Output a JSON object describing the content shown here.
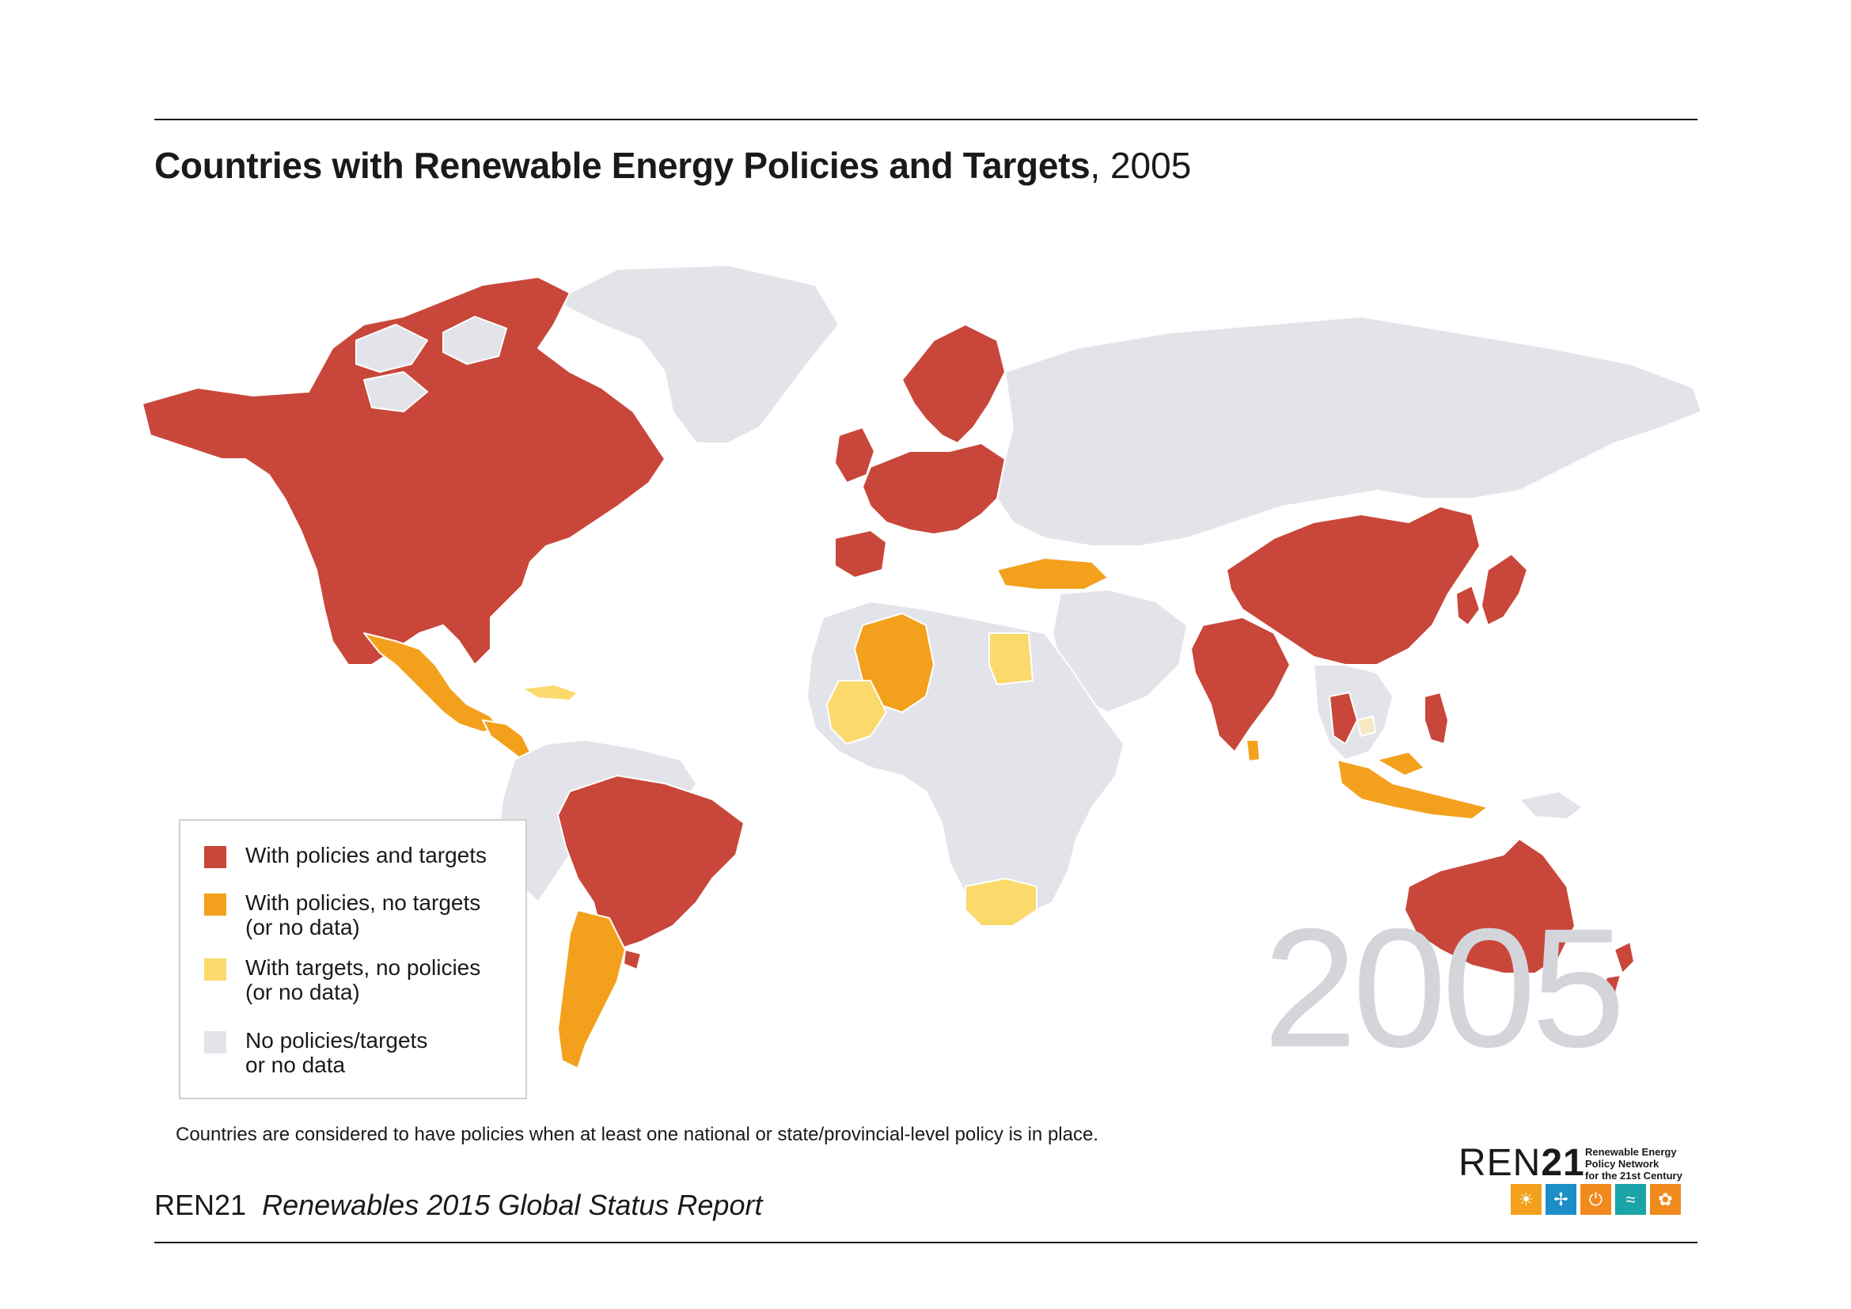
{
  "title": {
    "main": "Countries with Renewable Energy Policies and Targets",
    "separator": ",",
    "year": "2005"
  },
  "watermark_year": "2005",
  "colors": {
    "policies_and_targets": "#c8473a",
    "policies_no_targets": "#f3a11d",
    "targets_no_policies": "#fbd96b",
    "no_data": "#e3e4ea",
    "targets_no_policies_light": "#f7e8c3"
  },
  "legend": {
    "items": [
      {
        "key": "policies_and_targets",
        "label_line1": "With policies and targets",
        "label_line2": ""
      },
      {
        "key": "policies_no_targets",
        "label_line1": "With policies, no targets",
        "label_line2": "(or no data)"
      },
      {
        "key": "targets_no_policies",
        "label_line1": "With targets, no policies",
        "label_line2": "(or no data)"
      },
      {
        "key": "no_data",
        "label_line1": "No policies/targets",
        "label_line2": "or no data"
      }
    ]
  },
  "footnote": "Countries are considered to have policies when at least one national or state/provincial-level policy is in place.",
  "source": {
    "org": "REN21",
    "report": "Renewables 2015 Global Status Report"
  },
  "logo": {
    "word_bold": "REN",
    "word_num": "21",
    "tagline_1": "Renewable Energy",
    "tagline_2": "Policy Network",
    "tagline_3": "for the 21st Century",
    "icons": [
      {
        "name": "sun-icon",
        "color": "#f3a11d",
        "glyph": "☀"
      },
      {
        "name": "wind-icon",
        "color": "#1c8fc9",
        "glyph": "✢"
      },
      {
        "name": "power-icon",
        "color": "#f08a1d",
        "glyph": "⏻"
      },
      {
        "name": "water-icon",
        "color": "#1aa3a8",
        "glyph": "≈"
      },
      {
        "name": "leaf-icon",
        "color": "#f08a1d",
        "glyph": "✿"
      }
    ]
  },
  "map_regions": [
    {
      "name": "north-america",
      "category": "policies_and_targets"
    },
    {
      "name": "mexico",
      "category": "policies_no_targets"
    },
    {
      "name": "central-america",
      "category": "policies_no_targets"
    },
    {
      "name": "caribbean",
      "category": "targets_no_policies"
    },
    {
      "name": "greenland",
      "category": "no_data"
    },
    {
      "name": "south-america-north",
      "category": "no_data"
    },
    {
      "name": "brazil",
      "category": "policies_and_targets"
    },
    {
      "name": "argentina",
      "category": "policies_no_targets"
    },
    {
      "name": "uruguay",
      "category": "policies_and_targets"
    },
    {
      "name": "europe",
      "category": "policies_and_targets"
    },
    {
      "name": "scandinavia",
      "category": "policies_and_targets"
    },
    {
      "name": "uk-ireland",
      "category": "policies_and_targets"
    },
    {
      "name": "iberia",
      "category": "policies_and_targets"
    },
    {
      "name": "turkey",
      "category": "policies_no_targets"
    },
    {
      "name": "russia-central-asia",
      "category": "no_data"
    },
    {
      "name": "algeria",
      "category": "policies_no_targets"
    },
    {
      "name": "mali",
      "category": "targets_no_policies"
    },
    {
      "name": "egypt",
      "category": "targets_no_policies"
    },
    {
      "name": "africa",
      "category": "no_data"
    },
    {
      "name": "south-africa",
      "category": "targets_no_policies"
    },
    {
      "name": "middle-east",
      "category": "no_data"
    },
    {
      "name": "india",
      "category": "policies_and_targets"
    },
    {
      "name": "sri-lanka",
      "category": "policies_no_targets"
    },
    {
      "name": "china",
      "category": "policies_and_targets"
    },
    {
      "name": "japan",
      "category": "policies_and_targets"
    },
    {
      "name": "korea",
      "category": "policies_and_targets"
    },
    {
      "name": "thailand",
      "category": "policies_and_targets"
    },
    {
      "name": "philippines",
      "category": "policies_and_targets"
    },
    {
      "name": "cambodia",
      "category": "targets_no_policies_light"
    },
    {
      "name": "indonesia-malaysia",
      "category": "policies_no_targets"
    },
    {
      "name": "papua",
      "category": "no_data"
    },
    {
      "name": "australia",
      "category": "policies_and_targets"
    },
    {
      "name": "new-zealand",
      "category": "policies_and_targets"
    }
  ]
}
